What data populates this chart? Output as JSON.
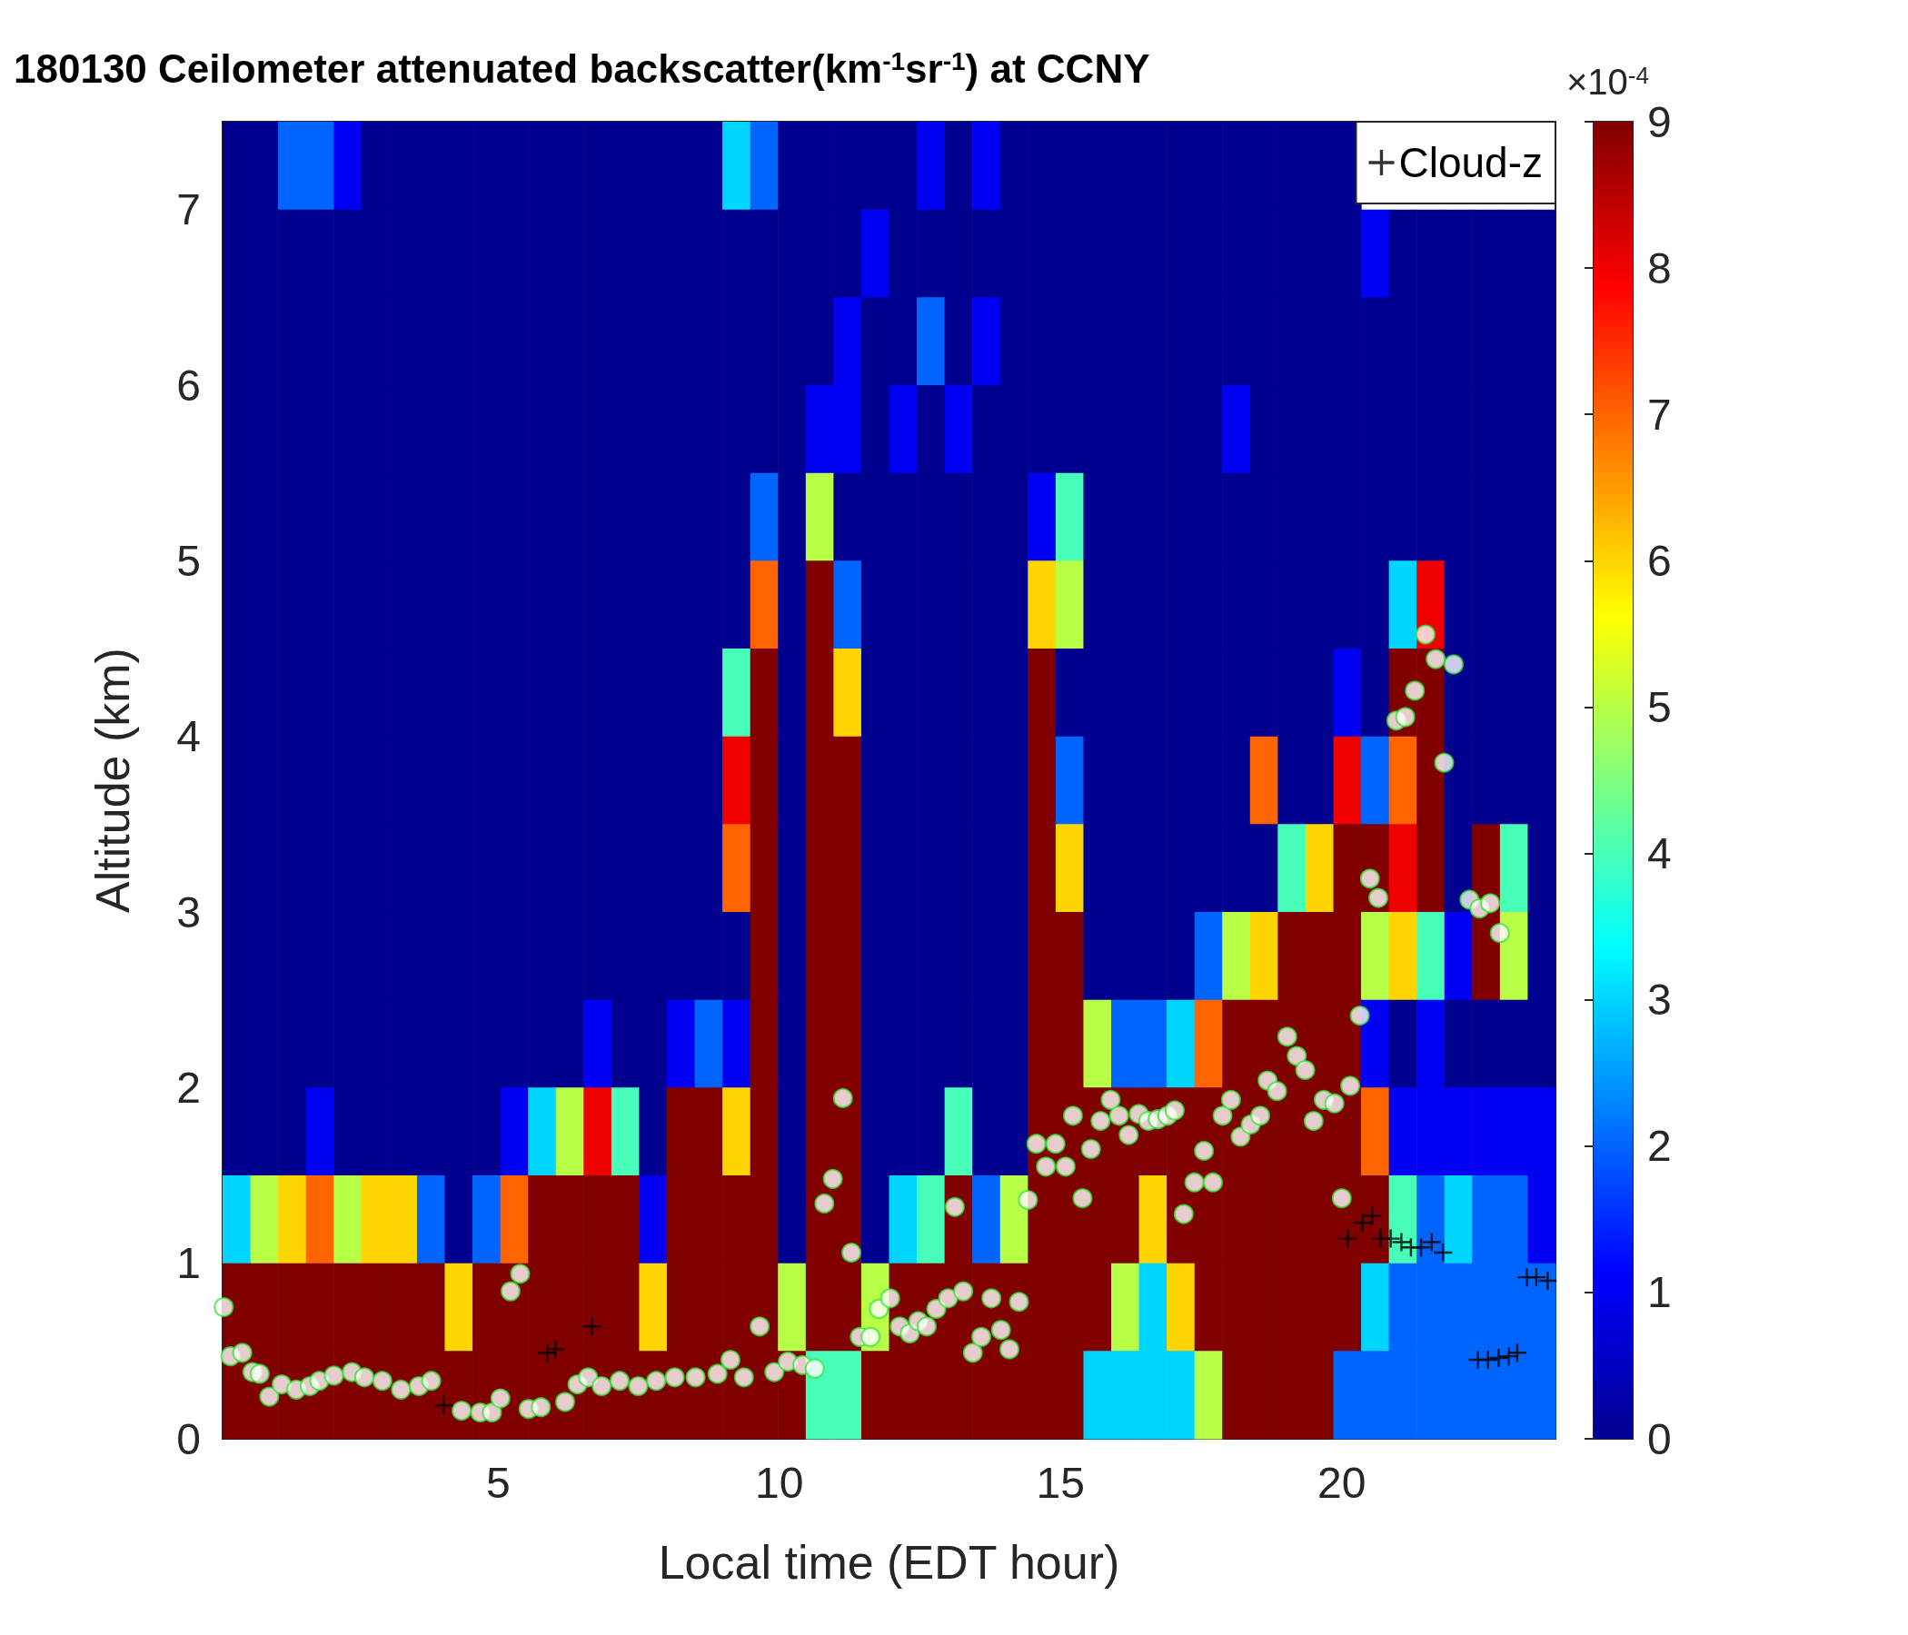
{
  "chart_data": {
    "type": "heatmap",
    "title": "180130 Ceilometer attenuated backscatter(km$^{-1}$sr$^{-1}$) at CCNY",
    "xlabel": "Local time (EDT hour)",
    "ylabel": "Altitude (km)",
    "clabel": "×10$^{-4}$",
    "clim": [
      0,
      9
    ],
    "cticks": [
      0,
      1,
      2,
      3,
      4,
      5,
      6,
      7,
      8,
      9
    ],
    "xlim": [
      0.1,
      23.8
    ],
    "ylim": [
      0,
      7.5
    ],
    "xticks": [
      5,
      10,
      15,
      20
    ],
    "yticks": [
      0,
      1,
      2,
      3,
      4,
      5,
      6,
      7
    ],
    "grid": false,
    "legend": "top right",
    "cells": [
      [
        0,
        0,
        2,
        2,
        1,
        0,
        0,
        0,
        0,
        0,
        0,
        0,
        0,
        0,
        0,
        0,
        0,
        0,
        3,
        2,
        0,
        0,
        0,
        0,
        0,
        1,
        0,
        1,
        0,
        0,
        0,
        0,
        0,
        0,
        0,
        0,
        0,
        0,
        0,
        0,
        0,
        null,
        null,
        null,
        null,
        null,
        null,
        null
      ],
      [
        0,
        0,
        0,
        0,
        0,
        0,
        0,
        0,
        0,
        0,
        0,
        0,
        0,
        0,
        0,
        0,
        0,
        0,
        0,
        0,
        0,
        0,
        0,
        1,
        0,
        0,
        0,
        0,
        0,
        0,
        0,
        0,
        0,
        0,
        0,
        0,
        0,
        0,
        0,
        0,
        0,
        1,
        0,
        0,
        0,
        0,
        0,
        0
      ],
      [
        0,
        0,
        0,
        0,
        0,
        0,
        0,
        0,
        0,
        0,
        0,
        0,
        0,
        0,
        0,
        0,
        0,
        0,
        0,
        0,
        0,
        0,
        1,
        0,
        0,
        2,
        0,
        1,
        0,
        0,
        0,
        0,
        0,
        0,
        0,
        0,
        0,
        0,
        0,
        0,
        0,
        0,
        0,
        0,
        0,
        0,
        0,
        0
      ],
      [
        0,
        0,
        0,
        0,
        0,
        0,
        0,
        0,
        0,
        0,
        0,
        0,
        0,
        0,
        0,
        0,
        0,
        0,
        0,
        0,
        0,
        1,
        1,
        0,
        1,
        0,
        1,
        0,
        0,
        0,
        0,
        0,
        0,
        0,
        0,
        0,
        1,
        0,
        0,
        0,
        0,
        0,
        0,
        0,
        0,
        0,
        0,
        0
      ],
      [
        0,
        0,
        0,
        0,
        0,
        0,
        0,
        0,
        0,
        0,
        0,
        0,
        0,
        0,
        0,
        0,
        0,
        0,
        0,
        2,
        0,
        5,
        0,
        0,
        0,
        0,
        0,
        0,
        0,
        1,
        4,
        0,
        0,
        0,
        0,
        0,
        0,
        0,
        0,
        0,
        0,
        0,
        0,
        0,
        0,
        0,
        0,
        0
      ],
      [
        0,
        0,
        0,
        0,
        0,
        0,
        0,
        0,
        0,
        0,
        0,
        0,
        0,
        0,
        0,
        0,
        0,
        0,
        0,
        7,
        0,
        9,
        2,
        0,
        0,
        0,
        0,
        0,
        0,
        6,
        5,
        0,
        0,
        0,
        0,
        0,
        0,
        0,
        0,
        0,
        0,
        0,
        3,
        8,
        0,
        0,
        0,
        0
      ],
      [
        0,
        0,
        0,
        0,
        0,
        0,
        0,
        0,
        0,
        0,
        0,
        0,
        0,
        0,
        0,
        0,
        0,
        0,
        4,
        9,
        0,
        9,
        6,
        0,
        0,
        0,
        0,
        0,
        0,
        9,
        0,
        0,
        0,
        0,
        0,
        0,
        0,
        0,
        0,
        0,
        1,
        0,
        9,
        9,
        0,
        0,
        0,
        0
      ],
      [
        0,
        0,
        0,
        0,
        0,
        0,
        0,
        0,
        0,
        0,
        0,
        0,
        0,
        0,
        0,
        0,
        0,
        0,
        8,
        9,
        0,
        9,
        9,
        0,
        0,
        0,
        0,
        0,
        0,
        9,
        2,
        0,
        0,
        0,
        0,
        0,
        0,
        7,
        0,
        0,
        8,
        2,
        7,
        9,
        0,
        0,
        0,
        0
      ],
      [
        0,
        0,
        0,
        0,
        0,
        0,
        0,
        0,
        0,
        0,
        0,
        0,
        0,
        0,
        0,
        0,
        0,
        0,
        7,
        9,
        0,
        9,
        9,
        0,
        0,
        0,
        0,
        0,
        0,
        9,
        6,
        0,
        0,
        0,
        0,
        0,
        0,
        0,
        4,
        6,
        9,
        9,
        8,
        9,
        0,
        9,
        4,
        0
      ],
      [
        0,
        0,
        0,
        0,
        0,
        0,
        0,
        0,
        0,
        0,
        0,
        0,
        0,
        0,
        0,
        0,
        0,
        0,
        0,
        9,
        0,
        9,
        9,
        0,
        0,
        0,
        0,
        0,
        0,
        9,
        9,
        0,
        0,
        0,
        0,
        2,
        5,
        6,
        9,
        9,
        9,
        5,
        6,
        4,
        1,
        9,
        5,
        0
      ],
      [
        0,
        0,
        0,
        0,
        0,
        0,
        0,
        0,
        0,
        0,
        0,
        0,
        0,
        1,
        0,
        0,
        1,
        2,
        1,
        9,
        0,
        9,
        9,
        0,
        0,
        0,
        0,
        0,
        0,
        9,
        9,
        5,
        2,
        2,
        3,
        7,
        9,
        9,
        9,
        9,
        9,
        1,
        0,
        1,
        0,
        0,
        0,
        0
      ],
      [
        0,
        0,
        0,
        1,
        0,
        0,
        0,
        0,
        0,
        0,
        1,
        3,
        5,
        8,
        4,
        0,
        9,
        9,
        6,
        9,
        0,
        9,
        9,
        0,
        0,
        0,
        4,
        0,
        0,
        9,
        9,
        9,
        9,
        9,
        9,
        9,
        9,
        9,
        9,
        9,
        9,
        7,
        1,
        1,
        1,
        1,
        1,
        1
      ],
      [
        3,
        5,
        6,
        7,
        5,
        6,
        6,
        2,
        0,
        2,
        7,
        9,
        9,
        9,
        9,
        1,
        9,
        9,
        9,
        9,
        0,
        9,
        9,
        0,
        3,
        4,
        9,
        2,
        5,
        9,
        9,
        9,
        9,
        6,
        9,
        9,
        9,
        9,
        9,
        9,
        9,
        9,
        4,
        2,
        3,
        2,
        2,
        1
      ],
      [
        9,
        9,
        9,
        9,
        9,
        9,
        9,
        9,
        6,
        9,
        9,
        9,
        9,
        9,
        9,
        6,
        9,
        9,
        9,
        9,
        5,
        9,
        9,
        5,
        9,
        9,
        9,
        9,
        9,
        9,
        9,
        9,
        5,
        3,
        6,
        9,
        9,
        9,
        9,
        9,
        9,
        3,
        2,
        2,
        2,
        2,
        2,
        2
      ],
      [
        9,
        9,
        9,
        9,
        9,
        9,
        9,
        9,
        9,
        9,
        9,
        9,
        9,
        9,
        9,
        9,
        9,
        9,
        9,
        9,
        9,
        4,
        4,
        9,
        9,
        9,
        9,
        9,
        9,
        9,
        9,
        3,
        3,
        3,
        3,
        5,
        9,
        9,
        9,
        9,
        2,
        2,
        2,
        2,
        2,
        2,
        2,
        2
      ]
    ],
    "series": [
      {
        "type": "scatter",
        "marker": "circle",
        "color": "#33e633",
        "x": [
          0.12,
          0.24,
          0.45,
          0.63,
          0.76,
          0.93,
          1.15,
          1.41,
          1.65,
          1.82,
          2.08,
          2.4,
          2.62,
          2.94,
          3.27,
          3.59,
          3.81,
          4.35,
          4.68,
          4.89,
          5.04,
          5.22,
          5.39,
          5.54,
          5.76,
          6.19,
          6.41,
          6.6,
          6.84,
          7.16,
          7.49,
          7.81,
          8.14,
          8.51,
          8.9,
          9.13,
          9.37,
          9.65,
          9.91,
          10.15,
          10.41,
          10.63,
          10.8,
          10.95,
          11.13,
          11.28,
          11.43,
          11.62,
          11.77,
          11.97,
          12.14,
          12.32,
          12.47,
          12.62,
          12.79,
          13.0,
          13.12,
          13.27,
          13.44,
          13.59,
          13.77,
          13.94,
          14.09,
          14.26,
          14.42,
          14.57,
          14.74,
          14.91,
          15.09,
          15.22,
          15.39,
          15.54,
          15.71,
          15.89,
          16.04,
          16.21,
          16.39,
          16.56,
          16.73,
          16.9,
          17.03,
          17.19,
          17.38,
          17.55,
          17.71,
          17.88,
          18.03,
          18.2,
          18.38,
          18.55,
          18.68,
          18.85,
          19.03,
          19.2,
          19.35,
          19.5,
          19.68,
          19.87,
          20.0,
          20.15,
          20.32,
          20.5,
          20.65,
          20.97,
          21.13,
          21.3,
          21.49,
          21.67,
          21.82,
          21.99,
          22.27,
          22.45,
          22.64,
          22.81
        ],
        "values": [
          0.75,
          0.47,
          0.49,
          0.38,
          0.37,
          0.24,
          0.31,
          0.28,
          0.3,
          0.33,
          0.36,
          0.38,
          0.35,
          0.33,
          0.28,
          0.3,
          0.33,
          0.16,
          0.15,
          0.15,
          0.23,
          0.84,
          0.94,
          0.17,
          0.18,
          0.21,
          0.31,
          0.35,
          0.3,
          0.33,
          0.3,
          0.33,
          0.35,
          0.35,
          0.37,
          0.45,
          0.35,
          0.64,
          0.38,
          0.44,
          0.42,
          0.4,
          1.34,
          1.48,
          1.94,
          1.06,
          0.58,
          0.58,
          0.74,
          0.8,
          0.64,
          0.6,
          0.67,
          0.64,
          0.74,
          0.8,
          1.32,
          0.84,
          0.49,
          0.58,
          0.8,
          0.62,
          0.51,
          0.78,
          1.36,
          1.68,
          1.55,
          1.68,
          1.55,
          1.84,
          1.37,
          1.65,
          1.81,
          1.93,
          1.84,
          1.73,
          1.85,
          1.81,
          1.82,
          1.84,
          1.87,
          1.28,
          1.46,
          1.64,
          1.46,
          1.84,
          1.93,
          1.72,
          1.79,
          1.84,
          2.04,
          1.98,
          2.29,
          2.18,
          2.1,
          1.81,
          1.93,
          1.91,
          1.37,
          2.01,
          2.41,
          3.19,
          3.08,
          4.09,
          4.11,
          4.26,
          4.58,
          4.44,
          3.85,
          4.41,
          3.07,
          3.02,
          3.05,
          2.88
        ]
      },
      {
        "type": "scatter",
        "marker": "cross",
        "name": "Cloud-z",
        "color": "#000000",
        "x": [
          4.03,
          5.87,
          6.02,
          6.67,
          20.11,
          20.37,
          20.54,
          20.69,
          20.87,
          21.06,
          21.23,
          21.41,
          21.6,
          21.8,
          22.42,
          22.6,
          22.79,
          22.97,
          23.12,
          23.29,
          23.46,
          23.66
        ],
        "values": [
          0.19,
          0.49,
          0.51,
          0.64,
          1.14,
          1.23,
          1.27,
          1.14,
          1.14,
          1.12,
          1.09,
          1.09,
          1.12,
          1.06,
          0.45,
          0.45,
          0.46,
          0.47,
          0.49,
          0.92,
          0.92,
          0.9
        ]
      }
    ]
  }
}
